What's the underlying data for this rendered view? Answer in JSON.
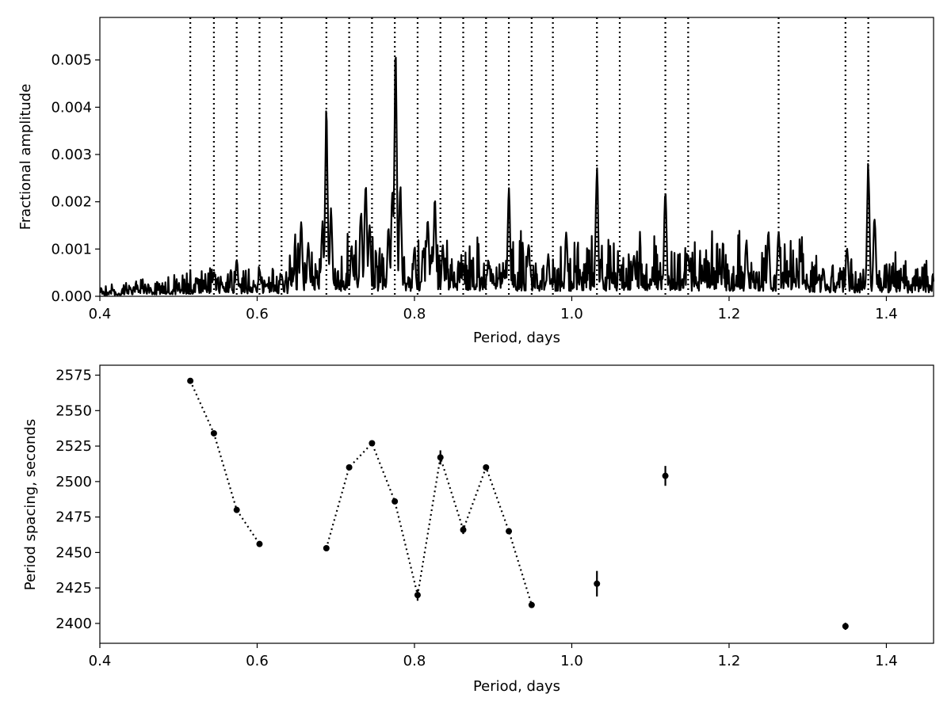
{
  "chart_data": [
    {
      "type": "line",
      "xlabel": "Period, days",
      "ylabel": "Fractional amplitude",
      "xlim": [
        0.4,
        1.46
      ],
      "ylim": [
        0,
        0.0059
      ],
      "xticks": [
        "0.4",
        "0.6",
        "0.8",
        "1.0",
        "1.2",
        "1.4"
      ],
      "yticks": [
        "0.000",
        "0.001",
        "0.002",
        "0.003",
        "0.004",
        "0.005"
      ],
      "vlines_x": [
        0.515,
        0.545,
        0.574,
        0.603,
        0.631,
        0.688,
        0.717,
        0.746,
        0.775,
        0.804,
        0.833,
        0.862,
        0.891,
        0.92,
        0.949,
        0.976,
        1.032,
        1.061,
        1.119,
        1.148,
        1.263,
        1.348,
        1.377
      ],
      "peaks": [
        {
          "x": 0.545,
          "y": 0.00055
        },
        {
          "x": 0.574,
          "y": 0.0008
        },
        {
          "x": 0.603,
          "y": 0.0006
        },
        {
          "x": 0.631,
          "y": 0.0005
        },
        {
          "x": 0.656,
          "y": 0.0016
        },
        {
          "x": 0.665,
          "y": 0.0012
        },
        {
          "x": 0.683,
          "y": 0.0016
        },
        {
          "x": 0.688,
          "y": 0.0041
        },
        {
          "x": 0.694,
          "y": 0.0019
        },
        {
          "x": 0.72,
          "y": 0.0011
        },
        {
          "x": 0.732,
          "y": 0.0019
        },
        {
          "x": 0.738,
          "y": 0.0025
        },
        {
          "x": 0.743,
          "y": 0.0016
        },
        {
          "x": 0.767,
          "y": 0.0015
        },
        {
          "x": 0.772,
          "y": 0.0024
        },
        {
          "x": 0.776,
          "y": 0.0054
        },
        {
          "x": 0.782,
          "y": 0.0024
        },
        {
          "x": 0.8,
          "y": 0.0011
        },
        {
          "x": 0.817,
          "y": 0.0017
        },
        {
          "x": 0.826,
          "y": 0.0021
        },
        {
          "x": 0.836,
          "y": 0.0011
        },
        {
          "x": 0.862,
          "y": 0.0007
        },
        {
          "x": 0.894,
          "y": 0.0008
        },
        {
          "x": 0.92,
          "y": 0.0023
        },
        {
          "x": 0.945,
          "y": 0.0012
        },
        {
          "x": 0.97,
          "y": 0.0009
        },
        {
          "x": 0.993,
          "y": 0.0014
        },
        {
          "x": 1.032,
          "y": 0.0028
        },
        {
          "x": 1.06,
          "y": 0.0006
        },
        {
          "x": 1.079,
          "y": 0.0009
        },
        {
          "x": 1.119,
          "y": 0.0024
        },
        {
          "x": 1.148,
          "y": 0.0009
        },
        {
          "x": 1.222,
          "y": 0.0012
        },
        {
          "x": 1.25,
          "y": 0.0014
        },
        {
          "x": 1.263,
          "y": 0.0015
        },
        {
          "x": 1.32,
          "y": 0.0006
        },
        {
          "x": 1.35,
          "y": 0.0011
        },
        {
          "x": 1.377,
          "y": 0.0029
        },
        {
          "x": 1.385,
          "y": 0.0018
        },
        {
          "x": 1.42,
          "y": 0.0004
        }
      ]
    },
    {
      "type": "scatter",
      "xlabel": "Period, days",
      "ylabel": "Period spacing, seconds",
      "xlim": [
        0.4,
        1.46
      ],
      "ylim": [
        2386,
        2582
      ],
      "xticks": [
        "0.4",
        "0.6",
        "0.8",
        "1.0",
        "1.2",
        "1.4"
      ],
      "yticks": [
        "2400",
        "2425",
        "2450",
        "2475",
        "2500",
        "2525",
        "2550",
        "2575"
      ],
      "points": [
        {
          "x": 0.515,
          "y": 2571,
          "err": 1.5
        },
        {
          "x": 0.545,
          "y": 2534,
          "err": 1.5
        },
        {
          "x": 0.574,
          "y": 2480,
          "err": 1.5
        },
        {
          "x": 0.603,
          "y": 2456,
          "err": 1.5
        },
        {
          "x": 0.688,
          "y": 2453,
          "err": 1.5
        },
        {
          "x": 0.717,
          "y": 2510,
          "err": 1.5
        },
        {
          "x": 0.746,
          "y": 2527,
          "err": 1.5
        },
        {
          "x": 0.775,
          "y": 2486,
          "err": 1.5
        },
        {
          "x": 0.804,
          "y": 2420,
          "err": 4
        },
        {
          "x": 0.833,
          "y": 2517,
          "err": 5
        },
        {
          "x": 0.862,
          "y": 2466,
          "err": 3
        },
        {
          "x": 0.891,
          "y": 2510,
          "err": 1.5
        },
        {
          "x": 0.92,
          "y": 2465,
          "err": 1.5
        },
        {
          "x": 0.949,
          "y": 2413,
          "err": 1.5
        },
        {
          "x": 1.032,
          "y": 2428,
          "err": 9
        },
        {
          "x": 1.119,
          "y": 2504,
          "err": 7
        },
        {
          "x": 1.348,
          "y": 2398,
          "err": 2.5
        }
      ],
      "segments": [
        [
          0,
          3
        ],
        [
          4,
          13
        ]
      ]
    }
  ]
}
